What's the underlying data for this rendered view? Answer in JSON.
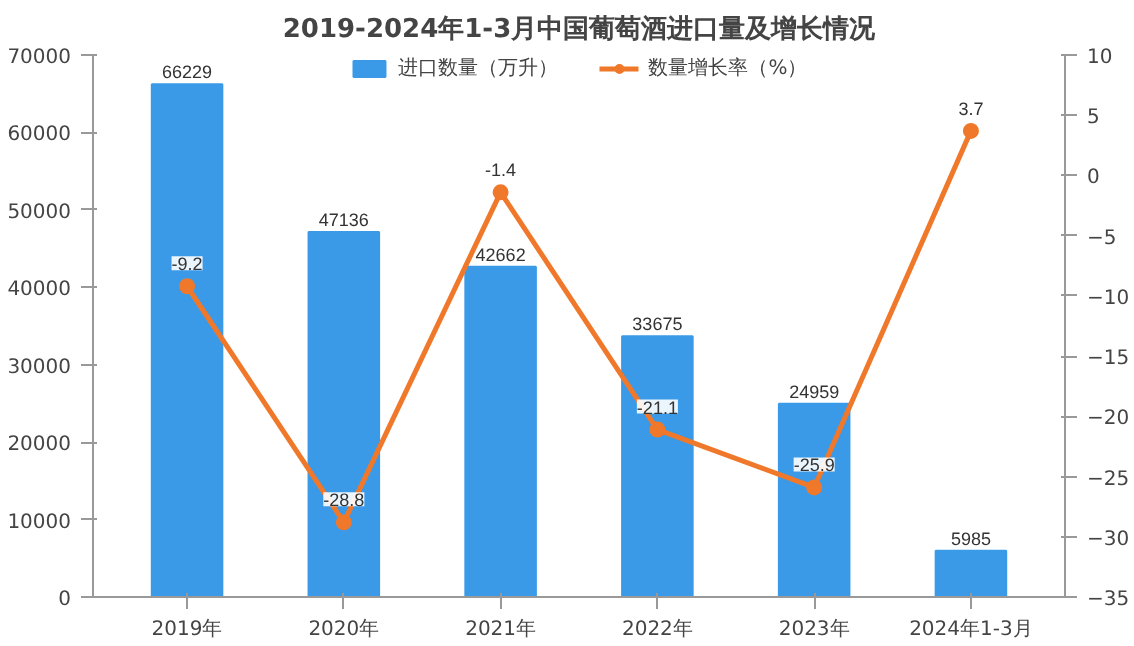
{
  "chart_data": {
    "type": "bar",
    "title": "2019-2024年1-3月中国葡萄酒进口量及增长情况",
    "categories": [
      "2019年",
      "2020年",
      "2021年",
      "2022年",
      "2023年",
      "2024年1-3月"
    ],
    "series": [
      {
        "name": "进口数量（万升）",
        "color": "#3a9ae8",
        "values": [
          66229,
          47136,
          42662,
          33675,
          24959,
          5985
        ]
      },
      {
        "name": "数量增长率（%）",
        "type": "line",
        "axis": "y2",
        "color": "#f0782a",
        "marker": "circle",
        "values": [
          -9.2,
          -28.8,
          -1.4,
          -21.1,
          -25.9,
          3.7
        ]
      }
    ],
    "ylim": [
      0,
      70000
    ],
    "yticks": [
      0,
      10000,
      20000,
      30000,
      40000,
      50000,
      60000,
      70000
    ],
    "y2lim": [
      -35,
      10
    ],
    "y2ticks": [
      -35,
      -30,
      -25,
      -20,
      -15,
      -10,
      -5,
      0,
      5,
      10
    ],
    "data_labels": true,
    "legend": "top",
    "grid": false
  }
}
